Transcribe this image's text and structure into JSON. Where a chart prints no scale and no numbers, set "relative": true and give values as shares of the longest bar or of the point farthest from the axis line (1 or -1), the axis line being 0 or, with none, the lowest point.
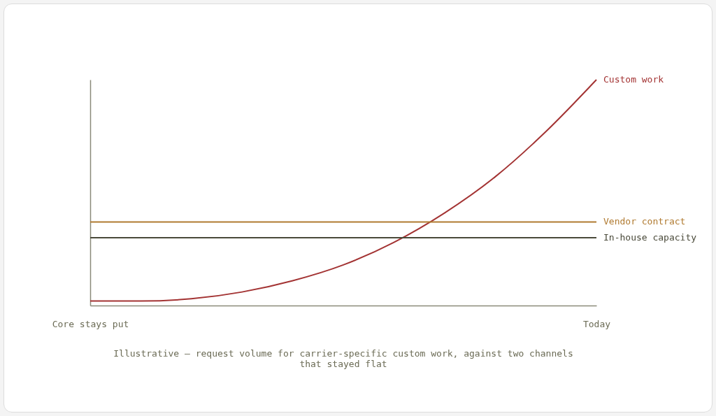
{
  "chart_data": {
    "type": "line",
    "relative": true,
    "categories": [
      "Core stays put",
      null,
      null,
      null,
      null,
      null,
      null,
      null,
      null,
      null,
      "Today"
    ],
    "series": [
      {
        "name": "Custom work",
        "color": "#a33333",
        "values": [
          0.02,
          0.02,
          0.03,
          0.06,
          0.11,
          0.18,
          0.28,
          0.41,
          0.57,
          0.77,
          1
        ]
      },
      {
        "name": "Vendor contract",
        "color": "#b07a30",
        "values": [
          0.37,
          0.37,
          0.37,
          0.37,
          0.37,
          0.37,
          0.37,
          0.37,
          0.37,
          0.37,
          0.37
        ]
      },
      {
        "name": "In-house capacity",
        "color": "#4a4a3a",
        "values": [
          0.3,
          0.3,
          0.3,
          0.3,
          0.3,
          0.3,
          0.3,
          0.3,
          0.3,
          0.3,
          0.3
        ]
      }
    ],
    "annotations": [
      "Illustrative — request volume for carrier-specific custom work, against two channels that stayed flat"
    ],
    "grid": false
  }
}
